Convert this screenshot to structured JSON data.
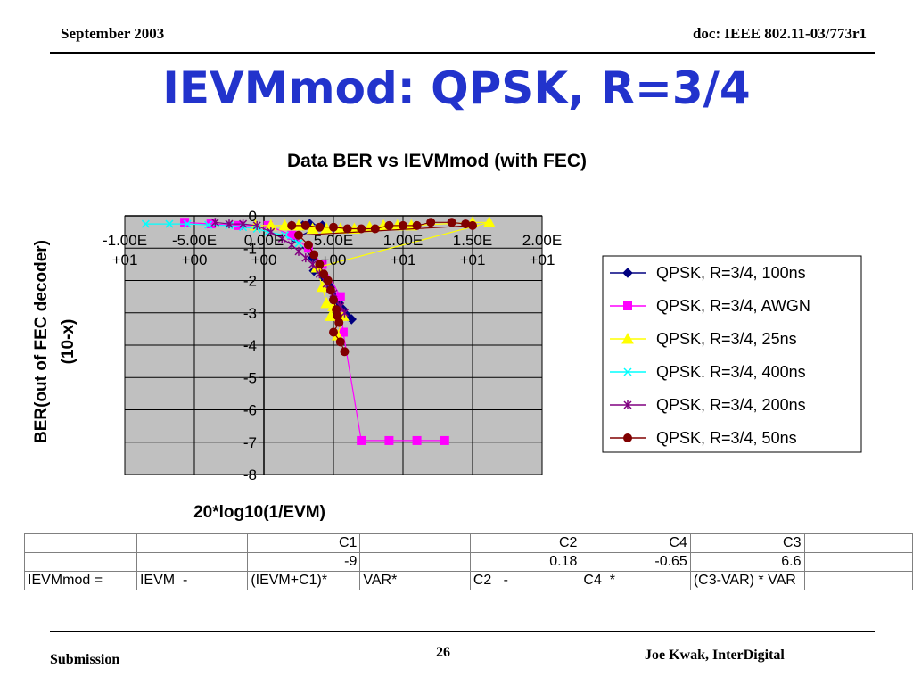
{
  "header": {
    "left": "September 2003",
    "right": "doc: IEEE 802.11-03/773r1"
  },
  "slide": {
    "title": "IEVMmod: QPSK, R=3/4"
  },
  "chart_data": {
    "type": "scatter",
    "title": "Data BER vs IEVMmod (with FEC)",
    "xlabel": "20*log10(1/EVM)",
    "ylabel_lines": [
      "BER(out of FEC decoder)",
      "(10-x)"
    ],
    "xlim": [
      -10,
      20
    ],
    "ylim": [
      -8,
      0
    ],
    "x_ticks": [
      {
        "value": -10,
        "label": [
          "-1.00E",
          "+01"
        ]
      },
      {
        "value": -5,
        "label": [
          "-5.00E",
          "+00"
        ]
      },
      {
        "value": 0,
        "label": [
          "0.00E",
          "+00"
        ]
      },
      {
        "value": 5,
        "label": [
          "5.00E",
          "+00"
        ]
      },
      {
        "value": 10,
        "label": [
          "1.00E",
          "+01"
        ]
      },
      {
        "value": 15,
        "label": [
          "1.50E",
          "+01"
        ]
      },
      {
        "value": 20,
        "label": [
          "2.00E",
          "+01"
        ]
      }
    ],
    "y_ticks": [
      0,
      -1,
      -2,
      -3,
      -4,
      -5,
      -6,
      -7,
      -8
    ],
    "grid": true,
    "plot_bg": "#c0c0c0",
    "legend_position": "right",
    "series": [
      {
        "name": "QPSK, R=3/4, 100ns",
        "color": "#000080",
        "marker": "diamond",
        "points": [
          [
            2,
            -0.3
          ],
          [
            2.8,
            -0.3
          ],
          [
            3.3,
            -0.25
          ],
          [
            4.2,
            -0.3
          ],
          [
            2.2,
            -0.7
          ],
          [
            3.5,
            -1.3
          ],
          [
            3.6,
            -1.7
          ],
          [
            4.3,
            -1.9
          ],
          [
            4.8,
            -2.2
          ],
          [
            5.1,
            -2.5
          ],
          [
            5.4,
            -2.7
          ],
          [
            5.7,
            -2.9
          ],
          [
            6.0,
            -3.1
          ],
          [
            6.3,
            -3.2
          ]
        ]
      },
      {
        "name": "QPSK, R=3/4, AWGN",
        "color": "#ff00ff",
        "marker": "square",
        "points": [
          [
            -5.7,
            -0.2
          ],
          [
            -3.8,
            -0.25
          ],
          [
            -1.8,
            -0.3
          ],
          [
            0.3,
            -0.3
          ],
          [
            2.0,
            -0.6
          ],
          [
            3.2,
            -1.0
          ],
          [
            4.2,
            -1.5
          ],
          [
            5.5,
            -2.5
          ],
          [
            5.7,
            -3.6
          ],
          [
            7.0,
            -6.95
          ],
          [
            9.0,
            -6.95
          ],
          [
            11.0,
            -6.95
          ],
          [
            13.0,
            -6.95
          ]
        ]
      },
      {
        "name": "QPSK, R=3/4, 25ns",
        "color": "#ffff00",
        "marker": "triangle",
        "points": [
          [
            -0.6,
            -0.3
          ],
          [
            0.5,
            -0.3
          ],
          [
            1.5,
            -0.3
          ],
          [
            2.5,
            -0.3
          ],
          [
            3.5,
            -0.4
          ],
          [
            4.5,
            -0.4
          ],
          [
            5.5,
            -0.4
          ],
          [
            6.5,
            -0.4
          ],
          [
            7.6,
            -0.35
          ],
          [
            8.6,
            -0.3
          ],
          [
            9.6,
            -0.3
          ],
          [
            10.6,
            -0.3
          ],
          [
            15,
            -0.2
          ],
          [
            16.2,
            -0.2
          ],
          [
            3.8,
            -1.6
          ],
          [
            4.2,
            -2.2
          ],
          [
            4.5,
            -2.7
          ],
          [
            5.0,
            -2.8
          ],
          [
            4.8,
            -3.1
          ],
          [
            5.7,
            -3.1
          ],
          [
            5.3,
            -3.7
          ]
        ]
      },
      {
        "name": "QPSK. R=3/4, 400ns",
        "color": "#00ffff",
        "marker": "x",
        "points": [
          [
            -8.5,
            -0.25
          ],
          [
            -6.8,
            -0.25
          ],
          [
            -5.5,
            -0.25
          ],
          [
            -4.0,
            -0.28
          ],
          [
            -2.5,
            -0.3
          ],
          [
            -1.5,
            -0.35
          ],
          [
            -0.5,
            -0.4
          ],
          [
            0.3,
            -0.5
          ],
          [
            1.5,
            -0.6
          ],
          [
            2.5,
            -0.85
          ]
        ]
      },
      {
        "name": "QPSK, R=3/4, 200ns",
        "color": "#800080",
        "marker": "star",
        "points": [
          [
            -3.5,
            -0.2
          ],
          [
            -2.5,
            -0.25
          ],
          [
            -1.5,
            -0.25
          ],
          [
            -0.5,
            -0.3
          ],
          [
            0.5,
            -0.5
          ],
          [
            1.3,
            -0.7
          ],
          [
            2.0,
            -0.9
          ],
          [
            2.5,
            -1.1
          ],
          [
            3.0,
            -1.3
          ],
          [
            3.5,
            -1.5
          ],
          [
            4.0,
            -1.8
          ],
          [
            4.5,
            -2.1
          ],
          [
            5.0,
            -2.4
          ],
          [
            5.5,
            -2.8
          ],
          [
            5.8,
            -3.0
          ]
        ]
      },
      {
        "name": "QPSK, R=3/4, 50ns",
        "color": "#800000",
        "marker": "circle",
        "points": [
          [
            2.0,
            -0.3
          ],
          [
            3.0,
            -0.3
          ],
          [
            4.0,
            -0.35
          ],
          [
            5.0,
            -0.35
          ],
          [
            6.0,
            -0.4
          ],
          [
            7.0,
            -0.4
          ],
          [
            8.0,
            -0.4
          ],
          [
            9.0,
            -0.3
          ],
          [
            10.0,
            -0.3
          ],
          [
            11.0,
            -0.3
          ],
          [
            12.0,
            -0.2
          ],
          [
            13.5,
            -0.2
          ],
          [
            14.5,
            -0.25
          ],
          [
            15.0,
            -0.3
          ],
          [
            2.5,
            -0.6
          ],
          [
            3.2,
            -0.9
          ],
          [
            3.6,
            -1.2
          ],
          [
            4.0,
            -1.5
          ],
          [
            4.3,
            -1.8
          ],
          [
            4.6,
            -2.0
          ],
          [
            4.8,
            -2.3
          ],
          [
            5.0,
            -2.6
          ],
          [
            5.2,
            -2.9
          ],
          [
            5.3,
            -3.1
          ],
          [
            5.4,
            -3.3
          ],
          [
            5.0,
            -3.6
          ],
          [
            5.5,
            -3.9
          ],
          [
            5.8,
            -4.2
          ]
        ]
      }
    ]
  },
  "table": {
    "rows": [
      [
        "",
        "",
        "C1",
        "",
        "C2",
        "C4",
        "C3",
        ""
      ],
      [
        "",
        "",
        "-9",
        "",
        "0.18",
        "-0.65",
        "6.6",
        ""
      ],
      [
        "IEVMmod =",
        "IEVM  -",
        "(IEVM+C1)*",
        "VAR*",
        "C2   -",
        "C4  *",
        "(C3-VAR) * VAR",
        ""
      ]
    ]
  },
  "footer": {
    "left": "Submission",
    "page": "26",
    "right": "Joe Kwak, InterDigital"
  }
}
